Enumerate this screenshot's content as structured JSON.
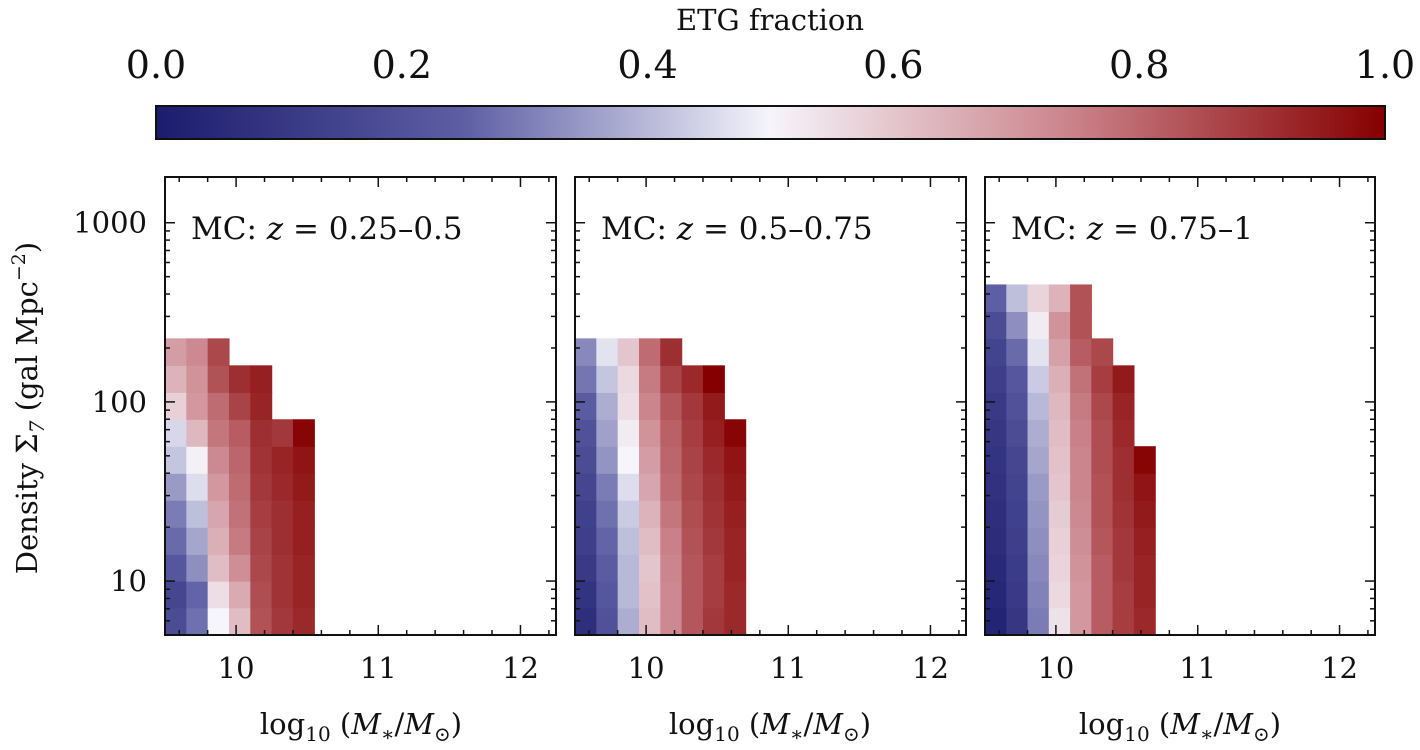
{
  "colorbar": {
    "label": "ETG fraction",
    "ticks": [
      "0.0",
      "0.2",
      "0.4",
      "0.6",
      "0.8",
      "1.0"
    ],
    "tick_values": [
      0.0,
      0.2,
      0.4,
      0.6,
      0.8,
      1.0
    ],
    "colors": [
      "#1c1c6e",
      "#5d5ea3",
      "#f5f5fb",
      "#c98088",
      "#850000"
    ]
  },
  "ylabel": {
    "main": "Density Σ",
    "sub": "7",
    "units": " (gal Mpc",
    "sup": "−2",
    "close": ")"
  },
  "xlabel": {
    "pre": "log",
    "sub": "10",
    "open": " (",
    "M": "M",
    "star": "∗",
    "slash": "/",
    "Msun": "M",
    "sun": "⊙",
    "close": ")"
  },
  "chart_data": [
    {
      "type": "heatmap",
      "title": "MC: z = 0.25–0.5",
      "title_parts": [
        "MC: ",
        "z",
        " = 0.25–0.5"
      ],
      "xlim": [
        9.5,
        12.25
      ],
      "ylim": [
        5,
        1800
      ],
      "x_ticks": [
        10,
        11,
        12
      ],
      "y_ticks": [
        10,
        100,
        1000
      ],
      "x_tick_labels": [
        "10",
        "11",
        "12"
      ],
      "y_tick_labels": [
        "10",
        "100",
        "1000"
      ],
      "x_edges": [
        9.5,
        9.65,
        9.8,
        9.95,
        10.1,
        10.25,
        10.4,
        10.55,
        10.7,
        10.85,
        11.0,
        11.15,
        11.3,
        11.45,
        11.6,
        11.75,
        11.9
      ],
      "y_edges": [
        5.0,
        7.1,
        10.0,
        14.1,
        20.0,
        28.3,
        40.0,
        56.6,
        80.0,
        113.1,
        160.0,
        226.3,
        320.0,
        452.5
      ],
      "cells": [
        [
          0.18,
          0.28,
          0.5,
          0.62,
          0.84,
          0.89,
          0.92,
          null,
          null
        ],
        [
          0.16,
          0.26,
          0.55,
          0.66,
          0.85,
          0.9,
          0.93,
          null,
          null
        ],
        [
          0.22,
          0.33,
          0.62,
          0.72,
          0.86,
          0.9,
          0.93,
          null,
          null
        ],
        [
          0.27,
          0.37,
          0.65,
          0.76,
          0.87,
          0.91,
          0.94,
          null,
          null
        ],
        [
          0.3,
          0.41,
          0.67,
          0.78,
          0.88,
          0.91,
          0.94,
          null,
          null
        ],
        [
          0.35,
          0.46,
          0.7,
          0.79,
          0.89,
          0.92,
          0.95,
          null,
          null
        ],
        [
          0.42,
          0.51,
          0.73,
          0.8,
          0.9,
          0.93,
          0.96,
          null,
          null
        ],
        [
          0.45,
          0.63,
          0.77,
          0.82,
          0.91,
          0.89,
          0.99,
          null,
          null
        ],
        [
          0.58,
          0.7,
          0.79,
          0.87,
          0.93,
          null,
          null,
          null,
          null
        ],
        [
          0.64,
          0.71,
          0.84,
          0.91,
          0.94,
          null,
          null,
          null,
          null
        ],
        [
          0.69,
          0.73,
          0.86,
          null,
          null,
          null,
          null,
          null,
          null
        ],
        [
          null,
          null,
          null,
          null,
          null,
          null,
          null,
          null,
          null
        ],
        [
          null,
          null,
          null,
          null,
          null,
          null,
          null,
          null,
          null
        ]
      ]
    },
    {
      "type": "heatmap",
      "title": "MC: z = 0.5–0.75",
      "title_parts": [
        "MC: ",
        "z",
        " = 0.5–0.75"
      ],
      "xlim": [
        9.5,
        12.25
      ],
      "ylim": [
        5,
        1800
      ],
      "x_ticks": [
        10,
        11,
        12
      ],
      "y_ticks": [
        10,
        100,
        1000
      ],
      "x_tick_labels": [
        "10",
        "11",
        "12"
      ],
      "y_tick_labels": [
        "10",
        "100",
        "1000"
      ],
      "x_edges": [
        9.5,
        9.65,
        9.8,
        9.95,
        10.1,
        10.25,
        10.4,
        10.55,
        10.7,
        10.85,
        11.0,
        11.15,
        11.3,
        11.45,
        11.6,
        11.75,
        11.9
      ],
      "y_edges": [
        5.0,
        7.1,
        10.0,
        14.1,
        20.0,
        28.3,
        40.0,
        56.6,
        80.0,
        113.1,
        160.0,
        226.3,
        320.0,
        452.5
      ],
      "cells": [
        [
          0.07,
          0.2,
          0.38,
          0.62,
          0.73,
          0.83,
          0.89,
          0.92,
          null
        ],
        [
          0.09,
          0.22,
          0.4,
          0.61,
          0.73,
          0.83,
          0.88,
          0.92,
          null
        ],
        [
          0.11,
          0.24,
          0.4,
          0.6,
          0.74,
          0.83,
          0.88,
          0.93,
          null
        ],
        [
          0.13,
          0.26,
          0.41,
          0.62,
          0.75,
          0.84,
          0.89,
          0.93,
          null
        ],
        [
          0.14,
          0.28,
          0.43,
          0.64,
          0.77,
          0.85,
          0.9,
          0.94,
          null
        ],
        [
          0.16,
          0.3,
          0.46,
          0.67,
          0.79,
          0.86,
          0.91,
          0.95,
          null
        ],
        [
          0.18,
          0.34,
          0.5,
          0.69,
          0.8,
          0.87,
          0.92,
          0.96,
          null
        ],
        [
          0.2,
          0.36,
          0.52,
          0.71,
          0.81,
          0.88,
          0.94,
          0.99,
          null
        ],
        [
          0.24,
          0.38,
          0.55,
          0.74,
          0.83,
          0.89,
          0.95,
          null,
          null
        ],
        [
          0.29,
          0.42,
          0.56,
          0.76,
          0.87,
          0.92,
          1.0,
          null,
          null
        ],
        [
          0.32,
          0.47,
          0.6,
          0.79,
          0.91,
          null,
          null,
          null,
          null
        ],
        [
          null,
          null,
          null,
          null,
          null,
          null,
          null,
          null,
          null
        ],
        [
          null,
          null,
          null,
          null,
          null,
          null,
          null,
          null,
          null
        ]
      ]
    },
    {
      "type": "heatmap",
      "title": "MC: z = 0.75–1",
      "title_parts": [
        "MC: ",
        "z",
        " = 0.75–1"
      ],
      "xlim": [
        9.5,
        12.25
      ],
      "ylim": [
        5,
        1800
      ],
      "x_ticks": [
        10,
        11,
        12
      ],
      "y_ticks": [
        10,
        100,
        1000
      ],
      "x_tick_labels": [
        "10",
        "11",
        "12"
      ],
      "y_tick_labels": [
        "10",
        "100",
        "1000"
      ],
      "x_edges": [
        9.5,
        9.65,
        9.8,
        9.95,
        10.1,
        10.25,
        10.4,
        10.55,
        10.7,
        10.85,
        11.0,
        11.15,
        11.3,
        11.45,
        11.6,
        11.75,
        11.9
      ],
      "y_edges": [
        5.0,
        7.1,
        10.0,
        14.1,
        20.0,
        28.3,
        40.0,
        56.6,
        80.0,
        113.1,
        160.0,
        226.3,
        320.0,
        452.5
      ],
      "cells": [
        [
          0.03,
          0.1,
          0.3,
          0.54,
          0.7,
          0.82,
          0.88,
          0.92
        ],
        [
          0.04,
          0.11,
          0.31,
          0.56,
          0.7,
          0.82,
          0.88,
          0.93
        ],
        [
          0.05,
          0.12,
          0.32,
          0.57,
          0.71,
          0.82,
          0.89,
          0.93
        ],
        [
          0.06,
          0.13,
          0.33,
          0.58,
          0.72,
          0.83,
          0.89,
          0.94
        ],
        [
          0.07,
          0.14,
          0.34,
          0.59,
          0.73,
          0.84,
          0.9,
          0.95
        ],
        [
          0.08,
          0.15,
          0.35,
          0.6,
          0.74,
          0.84,
          0.91,
          0.96
        ],
        [
          0.09,
          0.16,
          0.37,
          0.61,
          0.74,
          0.85,
          0.91,
          0.99
        ],
        [
          0.1,
          0.18,
          0.38,
          0.62,
          0.75,
          0.85,
          0.92,
          null
        ],
        [
          0.11,
          0.2,
          0.4,
          0.63,
          0.76,
          0.86,
          0.93,
          null
        ],
        [
          0.13,
          0.22,
          0.43,
          0.65,
          0.78,
          0.88,
          0.95,
          null
        ],
        [
          0.15,
          0.27,
          0.47,
          0.68,
          0.82,
          0.86,
          null,
          null
        ],
        [
          0.18,
          0.33,
          0.52,
          0.71,
          0.84,
          null,
          null,
          null
        ],
        [
          0.25,
          0.41,
          0.57,
          0.64,
          0.84,
          null,
          null,
          null
        ]
      ]
    }
  ]
}
